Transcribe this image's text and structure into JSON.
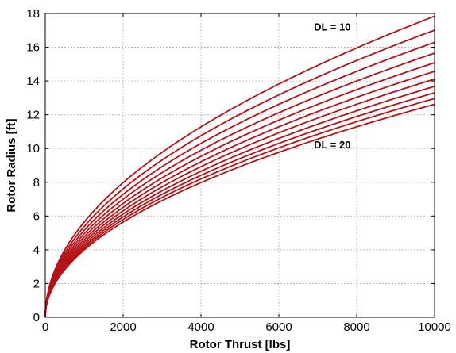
{
  "chart_data": {
    "type": "line",
    "title": "",
    "xlabel": "Rotor Thrust [lbs]",
    "ylabel": "Rotor Radius [ft]",
    "xlim": [
      0,
      10000
    ],
    "ylim": [
      0,
      18
    ],
    "xticks": [
      0,
      2000,
      4000,
      6000,
      8000,
      10000
    ],
    "yticks": [
      0,
      2,
      4,
      6,
      8,
      10,
      12,
      14,
      16,
      18
    ],
    "xtick_labels": [
      "0",
      "2000",
      "4000",
      "6000",
      "8000",
      "10000"
    ],
    "ytick_labels": [
      "0",
      "2",
      "4",
      "6",
      "8",
      "10",
      "12",
      "14",
      "16",
      "18"
    ],
    "grid": true,
    "line_color": "#b31217",
    "x": [
      0,
      1000,
      2000,
      3000,
      4000,
      5000,
      6000,
      7000,
      8000,
      9000,
      10000
    ],
    "series": [
      {
        "values": [
          0,
          5.64,
          7.98,
          9.77,
          11.28,
          12.62,
          13.82,
          14.93,
          15.96,
          16.93,
          17.84
        ]
      },
      {
        "values": [
          0,
          5.38,
          7.61,
          9.32,
          10.76,
          12.03,
          13.18,
          14.23,
          15.22,
          16.14,
          17.01
        ]
      },
      {
        "values": [
          0,
          5.15,
          7.28,
          8.92,
          10.3,
          11.52,
          12.62,
          13.63,
          14.57,
          15.45,
          16.29
        ]
      },
      {
        "values": [
          0,
          4.95,
          7.0,
          8.57,
          9.9,
          11.07,
          12.12,
          13.09,
          14.0,
          14.85,
          15.65
        ]
      },
      {
        "values": [
          0,
          4.77,
          6.74,
          8.26,
          9.54,
          10.66,
          11.68,
          12.61,
          13.49,
          14.31,
          15.08
        ]
      },
      {
        "values": [
          0,
          4.61,
          6.51,
          7.98,
          9.21,
          10.3,
          11.28,
          12.19,
          13.03,
          13.82,
          14.57
        ]
      },
      {
        "values": [
          0,
          4.46,
          6.31,
          7.73,
          8.92,
          9.97,
          10.93,
          11.8,
          12.62,
          13.38,
          14.11
        ]
      },
      {
        "values": [
          0,
          4.33,
          6.12,
          7.5,
          8.66,
          9.68,
          10.6,
          11.45,
          12.24,
          12.98,
          13.68
        ]
      },
      {
        "values": [
          0,
          4.21,
          5.95,
          7.29,
          8.42,
          9.41,
          10.31,
          11.13,
          11.9,
          12.62,
          13.3
        ]
      },
      {
        "values": [
          0,
          4.1,
          5.8,
          7.1,
          8.2,
          9.16,
          10.04,
          10.84,
          11.59,
          12.29,
          12.96
        ]
      },
      {
        "values": [
          0,
          3.99,
          5.64,
          6.91,
          7.98,
          8.92,
          9.77,
          10.56,
          11.28,
          11.97,
          12.62
        ]
      }
    ],
    "annotations": [
      {
        "text": "DL = 10",
        "x": 6900,
        "y": 17
      },
      {
        "text": "DL = 20",
        "x": 6900,
        "y": 10
      }
    ]
  }
}
